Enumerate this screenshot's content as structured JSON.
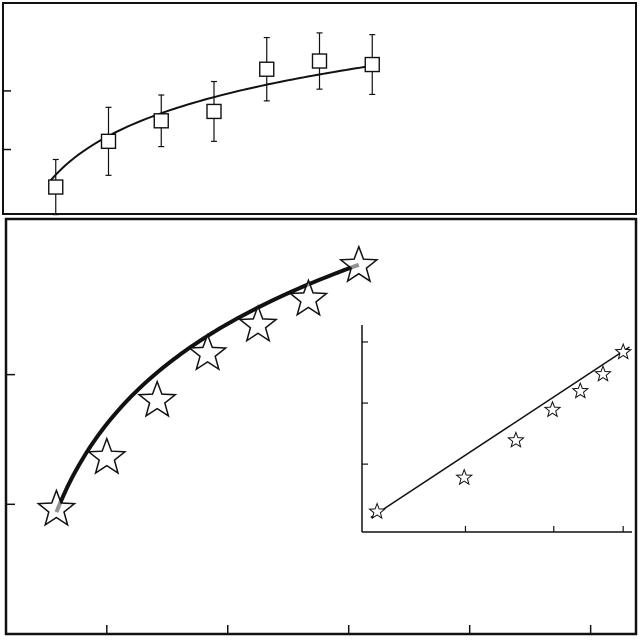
{
  "chart_data": [
    {
      "panel": "top",
      "type": "scatter",
      "title": "",
      "xlabel": "",
      "ylabel": "",
      "marker": "open-square",
      "error_bars": true,
      "fit_curve": "logarithmic",
      "x": [
        1,
        2,
        3,
        4,
        5,
        6,
        7
      ],
      "y": [
        0.36,
        1.14,
        1.49,
        1.65,
        2.37,
        2.51,
        2.45
      ],
      "yerr": [
        0.47,
        0.58,
        0.44,
        0.51,
        0.54,
        0.48,
        0.51
      ],
      "fit": {
        "a": 0.57,
        "b": 0.955
      },
      "xlim": [
        0,
        12
      ],
      "ylim": [
        -0.1,
        3.5
      ],
      "grid": false
    },
    {
      "panel": "main",
      "type": "scatter",
      "title": "",
      "xlabel": "",
      "ylabel": "",
      "marker": "open-star",
      "fit_curve": "logarithmic",
      "x": [
        1,
        2,
        3,
        4,
        5,
        6,
        7
      ],
      "y": [
        2.4,
        3.4,
        4.5,
        5.4,
        5.95,
        6.45,
        7.1
      ],
      "fit": {
        "a": 2.35,
        "b": 2.45
      },
      "xlim": [
        0,
        12.5
      ],
      "ylim": [
        0,
        8
      ],
      "grid": false
    },
    {
      "panel": "inset",
      "type": "scatter",
      "title": "",
      "xlabel": "",
      "ylabel": "",
      "marker": "open-star",
      "fit_curve": "linear",
      "x": [
        0,
        0.69,
        1.1,
        1.39,
        1.61,
        1.79,
        1.95
      ],
      "y": [
        2.4,
        3.4,
        4.5,
        5.4,
        5.95,
        6.45,
        7.1
      ],
      "fit": {
        "intercept": 2.35,
        "slope": 2.45
      },
      "xlim": [
        -0.12,
        2.02
      ],
      "ylim": [
        1.8,
        7.9
      ],
      "grid": false
    }
  ],
  "colors": {
    "ink": "#111111",
    "marker_fill": "#ffffff",
    "background": "#ffffff"
  }
}
